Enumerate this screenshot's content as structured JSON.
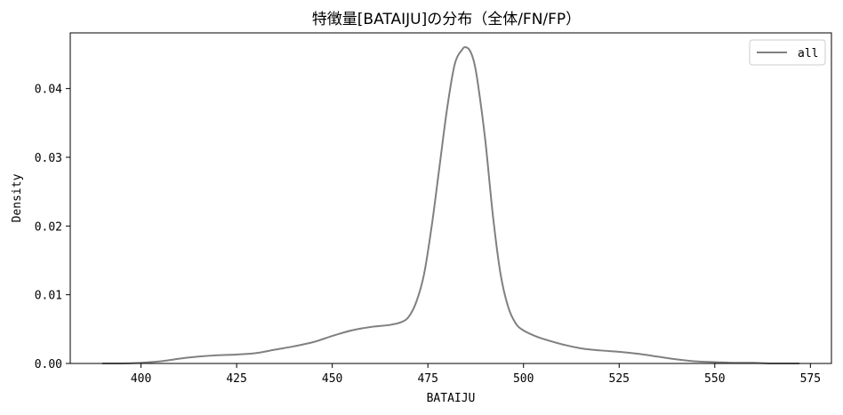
{
  "chart_data": {
    "type": "line",
    "title": "特徴量[BATAIJU]の分布（全体/FN/FP）",
    "xlabel": "BATAIJU",
    "ylabel": "Density",
    "xlim": [
      381.5,
      580.5
    ],
    "ylim": [
      0,
      0.0481
    ],
    "xticks": [
      400,
      425,
      450,
      475,
      500,
      525,
      550,
      575
    ],
    "yticks": [
      0.0,
      0.01,
      0.02,
      0.03,
      0.04
    ],
    "ytick_labels": [
      "0.00",
      "0.01",
      "0.02",
      "0.03",
      "0.04"
    ],
    "grid": false,
    "legend_position": "top-right",
    "series": [
      {
        "name": "all",
        "color": "#808080",
        "x": [
          390,
          395,
          400,
          405,
          410,
          415,
          420,
          425,
          430,
          435,
          440,
          445,
          450,
          455,
          460,
          465,
          468,
          470,
          472,
          474,
          476,
          478,
          480,
          482,
          484,
          485,
          486,
          487,
          488,
          490,
          492,
          494,
          496,
          498,
          500,
          503,
          505,
          510,
          515,
          520,
          525,
          530,
          535,
          540,
          545,
          550,
          555,
          560,
          565,
          572
        ],
        "values": [
          0.0,
          0.0,
          0.0001,
          0.0003,
          0.0007,
          0.001,
          0.0012,
          0.0013,
          0.0015,
          0.002,
          0.0025,
          0.0031,
          0.004,
          0.0048,
          0.0053,
          0.0056,
          0.006,
          0.0068,
          0.009,
          0.013,
          0.02,
          0.0285,
          0.037,
          0.0435,
          0.0457,
          0.046,
          0.0455,
          0.044,
          0.041,
          0.0325,
          0.0215,
          0.013,
          0.0082,
          0.0058,
          0.0048,
          0.004,
          0.0036,
          0.0028,
          0.0022,
          0.0019,
          0.0017,
          0.0014,
          0.001,
          0.0006,
          0.0003,
          0.0002,
          0.0001,
          0.0001,
          0.0,
          0.0
        ]
      }
    ]
  }
}
